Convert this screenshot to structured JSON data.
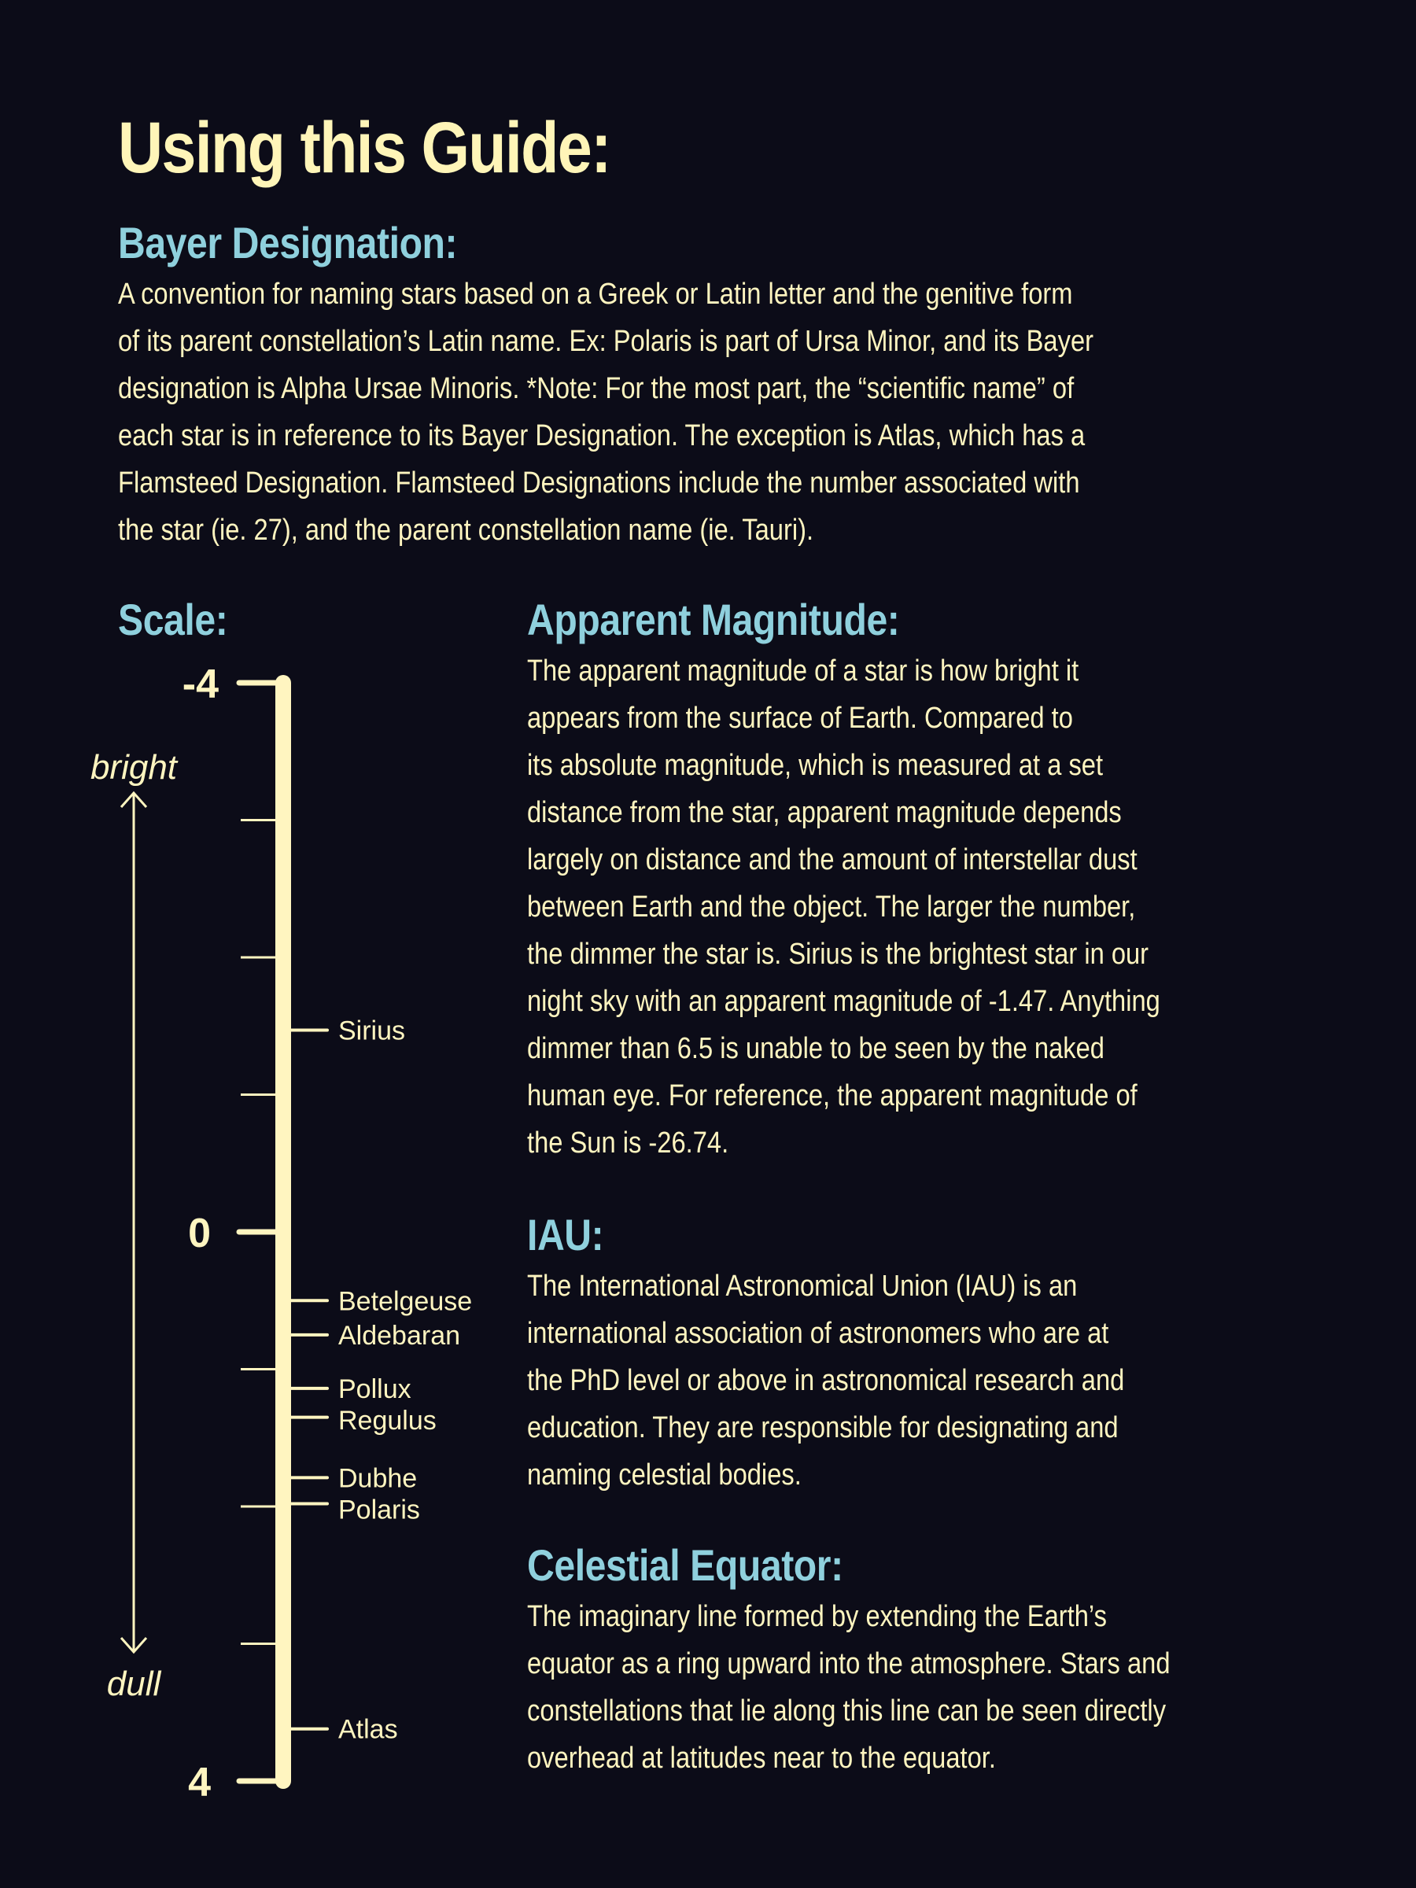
{
  "title": "Using this Guide:",
  "bayer": {
    "heading": "Bayer Designation:",
    "lines": [
      "A convention for naming stars based on a Greek or Latin letter and the genitive form",
      "of its parent constellation’s Latin name. Ex: Polaris is part of Ursa Minor, and its Bayer",
      "designation is Alpha Ursae Minoris. *Note: For the most part, the “scientific name” of",
      "each star is in reference to its Bayer Designation. The exception is Atlas, which has a",
      "Flamsteed Designation. Flamsteed Designations include the number associated with",
      "the star (ie. 27), and the parent constellation name (ie. Tauri)."
    ]
  },
  "scale": {
    "heading": "Scale:",
    "top_label": "-4",
    "mid_label": "0",
    "bottom_label": "4",
    "bright_label": "bright",
    "dull_label": "dull",
    "range": [
      -4,
      4
    ],
    "minor_ticks": [
      -3,
      -2,
      -1,
      1,
      2,
      3
    ],
    "stars": [
      {
        "name": "Sirius",
        "magnitude": -1.47
      },
      {
        "name": "Betelgeuse",
        "magnitude": 0.5
      },
      {
        "name": "Aldebaran",
        "magnitude": 0.75
      },
      {
        "name": "Pollux",
        "magnitude": 1.14
      },
      {
        "name": "Regulus",
        "magnitude": 1.35
      },
      {
        "name": "Dubhe",
        "magnitude": 1.79
      },
      {
        "name": "Polaris",
        "magnitude": 1.98
      },
      {
        "name": "Atlas",
        "magnitude": 3.62
      }
    ]
  },
  "apparent_magnitude": {
    "heading": "Apparent Magnitude:",
    "lines": [
      "The apparent magnitude of a star is how bright it",
      "appears from the surface of Earth. Compared to",
      "its absolute magnitude, which is measured at a set",
      "distance from the star, apparent magnitude depends",
      "largely on distance and the amount of interstellar dust",
      "between Earth and the object. The larger the number,",
      "the dimmer the star is.  Sirius is the brightest star in our",
      "night sky with an apparent magnitude of -1.47. Anything",
      "dimmer than 6.5 is unable to be seen by the naked",
      "human eye. For reference, the apparent magnitude of",
      "the Sun is -26.74."
    ]
  },
  "iau": {
    "heading": "IAU:",
    "lines": [
      "The International Astronomical Union (IAU) is an",
      "international association of astronomers who are at",
      "the PhD level or above in astronomical research and",
      "education. They are responsible for designating and",
      "naming celestial bodies."
    ]
  },
  "celestial_equator": {
    "heading": "Celestial Equator:",
    "lines": [
      "The imaginary line formed by extending the Earth’s",
      "equator as a ring upward into the atmosphere. Stars and",
      "constellations that lie along this line can be seen directly",
      "overhead at latitudes near to the equator."
    ]
  },
  "colors": {
    "background": "#0c0c18",
    "title": "#fff5b8",
    "heading": "#8fd0dd",
    "text": "#fff5c0"
  }
}
